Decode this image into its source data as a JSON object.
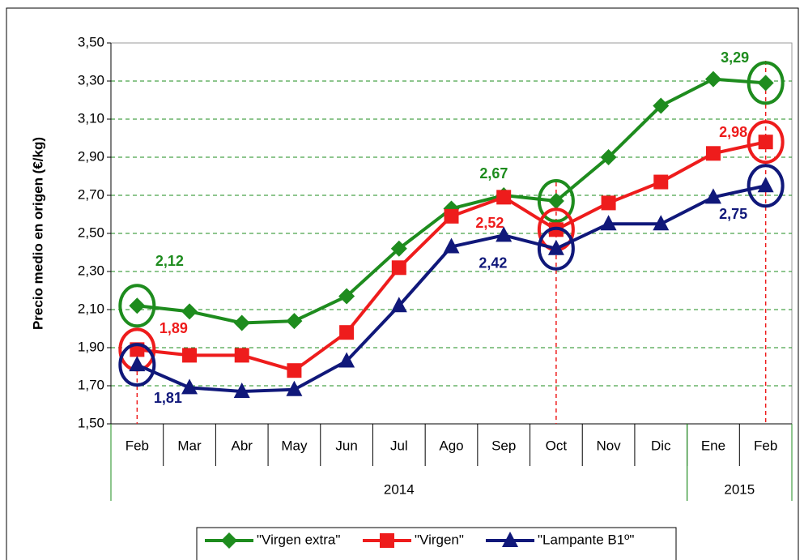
{
  "chart_data": {
    "type": "line",
    "y_label": "Precio medio en origen (€/kg)",
    "categories": [
      "Feb",
      "Mar",
      "Abr",
      "May",
      "Jun",
      "Jul",
      "Ago",
      "Sep",
      "Oct",
      "Nov",
      "Dic",
      "Ene",
      "Feb"
    ],
    "category_groups": [
      "2014",
      "2014",
      "2014",
      "2014",
      "2014",
      "2014",
      "2014",
      "2014",
      "2014",
      "2014",
      "2014",
      "2015",
      "2015"
    ],
    "ylim": [
      1.5,
      3.5
    ],
    "yticks": [
      {
        "value": 1.5,
        "label": "1,50"
      },
      {
        "value": 1.7,
        "label": "1,70"
      },
      {
        "value": 1.9,
        "label": "1,90"
      },
      {
        "value": 2.1,
        "label": "2,10"
      },
      {
        "value": 2.3,
        "label": "2,30"
      },
      {
        "value": 2.5,
        "label": "2,50"
      },
      {
        "value": 2.7,
        "label": "2,70"
      },
      {
        "value": 2.9,
        "label": "2,90"
      },
      {
        "value": 3.1,
        "label": "3,10"
      },
      {
        "value": 3.3,
        "label": "3,30"
      },
      {
        "value": 3.5,
        "label": "3,50"
      }
    ],
    "grid": true,
    "legend": "bottom",
    "series": [
      {
        "name": "\"Virgen extra\"",
        "color": "#1e8c1e",
        "marker": "diamond",
        "values": [
          2.12,
          2.09,
          2.03,
          2.04,
          2.17,
          2.42,
          2.63,
          2.7,
          2.67,
          2.9,
          3.17,
          3.31,
          3.29
        ],
        "value_labels": [
          "2,12",
          null,
          null,
          null,
          null,
          null,
          null,
          null,
          "2,67",
          null,
          null,
          null,
          "3,29"
        ]
      },
      {
        "name": "\"Virgen\"",
        "color": "#ee1c1c",
        "marker": "square",
        "values": [
          1.89,
          1.86,
          1.86,
          1.78,
          1.98,
          2.32,
          2.59,
          2.69,
          2.52,
          2.66,
          2.77,
          2.92,
          2.98
        ],
        "value_labels": [
          "1,89",
          null,
          null,
          null,
          null,
          null,
          null,
          null,
          "2,52",
          null,
          null,
          null,
          "2,98"
        ]
      },
      {
        "name": "\"Lampante B1º\"",
        "color": "#10187a",
        "marker": "triangle",
        "values": [
          1.81,
          1.69,
          1.67,
          1.68,
          1.83,
          2.12,
          2.43,
          2.49,
          2.42,
          2.55,
          2.55,
          2.69,
          2.75
        ],
        "value_labels": [
          "1,81",
          null,
          null,
          null,
          null,
          null,
          null,
          null,
          "2,42",
          null,
          null,
          null,
          "2,75"
        ]
      }
    ]
  }
}
